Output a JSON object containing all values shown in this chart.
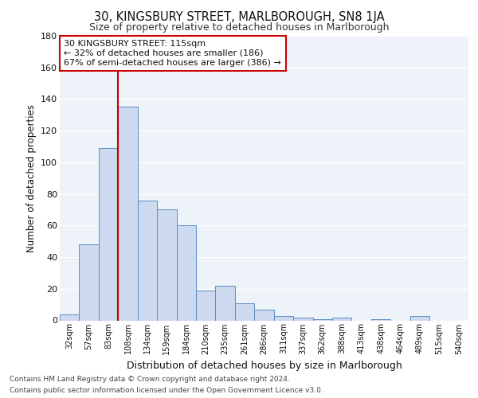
{
  "title1": "30, KINGSBURY STREET, MARLBOROUGH, SN8 1JA",
  "title2": "Size of property relative to detached houses in Marlborough",
  "xlabel": "Distribution of detached houses by size in Marlborough",
  "ylabel": "Number of detached properties",
  "categories": [
    "32sqm",
    "57sqm",
    "83sqm",
    "108sqm",
    "134sqm",
    "159sqm",
    "184sqm",
    "210sqm",
    "235sqm",
    "261sqm",
    "286sqm",
    "311sqm",
    "337sqm",
    "362sqm",
    "388sqm",
    "413sqm",
    "438sqm",
    "464sqm",
    "489sqm",
    "515sqm",
    "540sqm"
  ],
  "values": [
    4,
    48,
    109,
    135,
    76,
    70,
    60,
    19,
    22,
    11,
    7,
    3,
    2,
    1,
    2,
    0,
    1,
    0,
    3,
    0,
    0
  ],
  "bar_color": "#ccd9ee",
  "bar_edge_color": "#5b8fc4",
  "background_color": "#eef2f9",
  "grid_color": "#ffffff",
  "fig_background": "#ffffff",
  "vline_x_index": 3,
  "vline_color": "#cc0000",
  "annotation_text": "30 KINGSBURY STREET: 115sqm\n← 32% of detached houses are smaller (186)\n67% of semi-detached houses are larger (386) →",
  "annotation_box_color": "#ffffff",
  "annotation_box_edge": "#cc0000",
  "ylim": [
    0,
    180
  ],
  "yticks": [
    0,
    20,
    40,
    60,
    80,
    100,
    120,
    140,
    160,
    180
  ],
  "footnote1": "Contains HM Land Registry data © Crown copyright and database right 2024.",
  "footnote2": "Contains public sector information licensed under the Open Government Licence v3.0."
}
